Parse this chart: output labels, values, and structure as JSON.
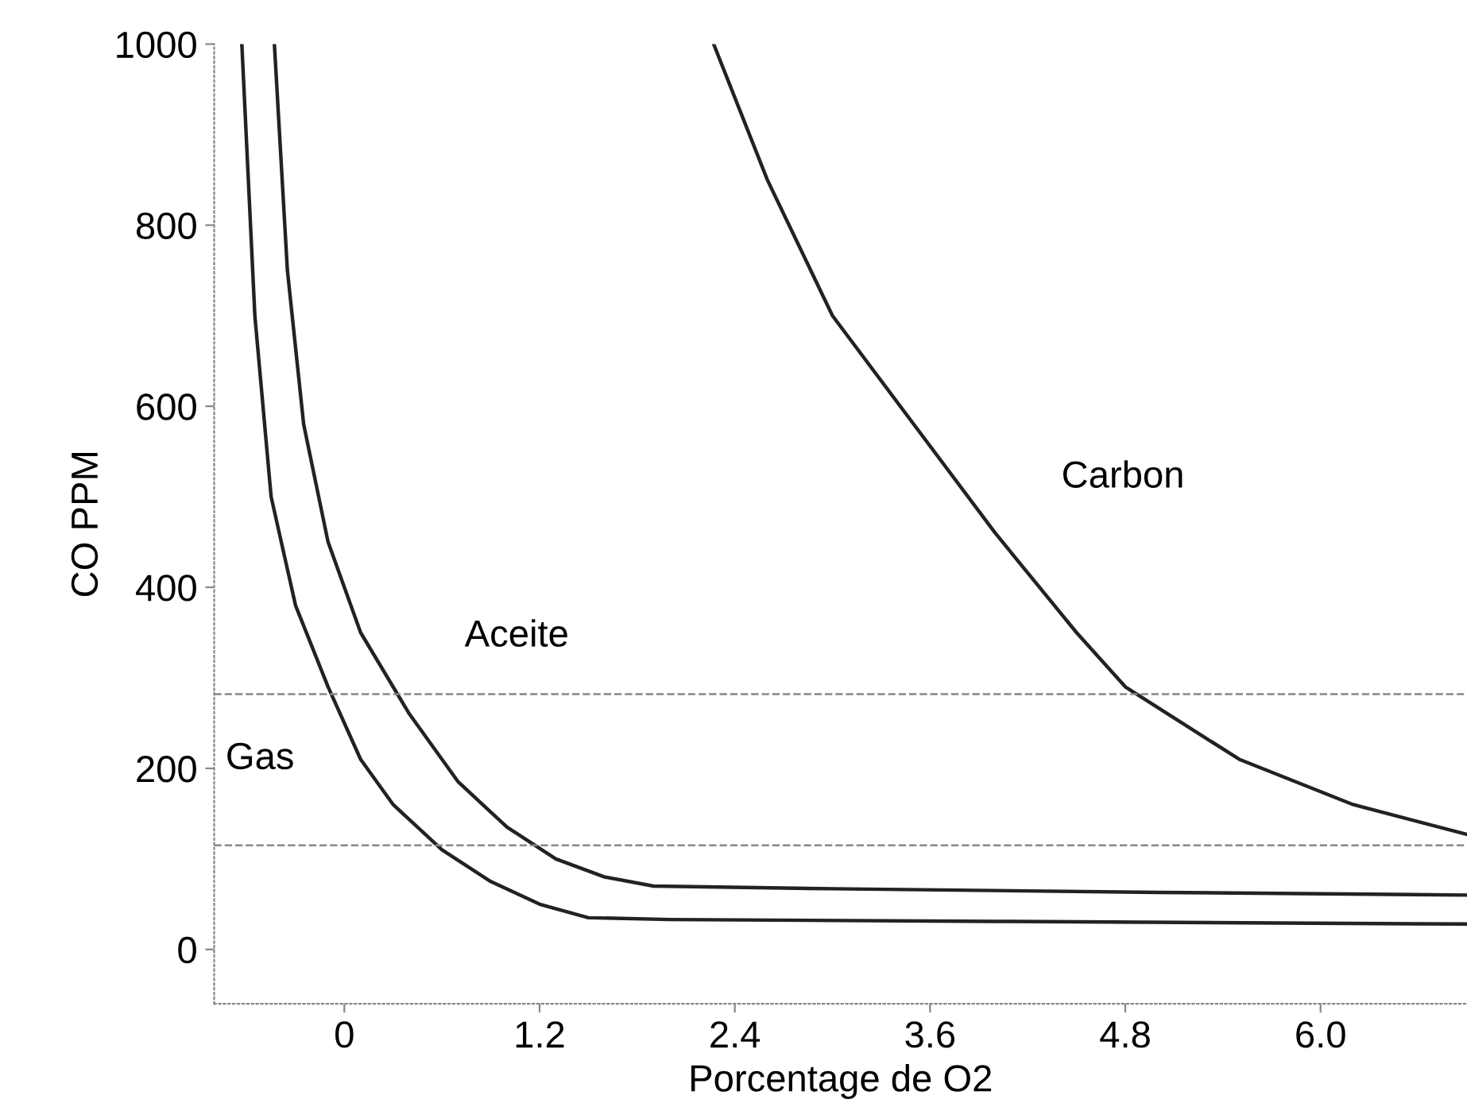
{
  "chart_data": {
    "type": "line",
    "xlabel": "Porcentage de O2",
    "ylabel": "CO PPM",
    "xlim": [
      -0.8,
      6.9
    ],
    "ylim": [
      -60,
      1000
    ],
    "xticks": [
      {
        "value": 0,
        "label": "0"
      },
      1.2,
      2.4,
      3.6,
      4.8,
      {
        "value": 6,
        "label": "6.0"
      }
    ],
    "yticks": [
      0,
      200,
      400,
      600,
      800,
      1000
    ],
    "grid": false,
    "legend": false,
    "line_style": "solid",
    "marker": "none",
    "series": [
      {
        "name": "Gas",
        "color": "#222222",
        "x": [
          -0.63,
          -0.55,
          -0.45,
          -0.3,
          -0.1,
          0.1,
          0.3,
          0.6,
          0.9,
          1.2,
          1.5,
          2.0,
          4.0,
          6.9
        ],
        "values": [
          1000,
          700,
          500,
          380,
          290,
          210,
          160,
          110,
          75,
          50,
          35,
          33,
          31,
          28
        ]
      },
      {
        "name": "Aceite",
        "color": "#222222",
        "x": [
          -0.43,
          -0.35,
          -0.25,
          -0.1,
          0.1,
          0.4,
          0.7,
          1.0,
          1.3,
          1.6,
          1.9,
          3,
          5,
          6.9
        ],
        "values": [
          1000,
          750,
          580,
          450,
          350,
          260,
          185,
          135,
          100,
          80,
          70,
          67,
          63,
          60
        ]
      },
      {
        "name": "Carbon",
        "color": "#222222",
        "x": [
          2.27,
          2.6,
          3.0,
          3.5,
          4.0,
          4.5,
          4.8,
          5.5,
          6.2,
          6.9
        ],
        "values": [
          1000,
          850,
          700,
          580,
          460,
          350,
          290,
          210,
          160,
          127
        ]
      }
    ],
    "ref_lines": [
      {
        "axis": "y",
        "value": 282,
        "label": null,
        "color": "#888888",
        "line_style": "dashed"
      },
      {
        "axis": "y",
        "value": 115,
        "label": null,
        "color": "#888888",
        "line_style": "dashed"
      }
    ]
  }
}
